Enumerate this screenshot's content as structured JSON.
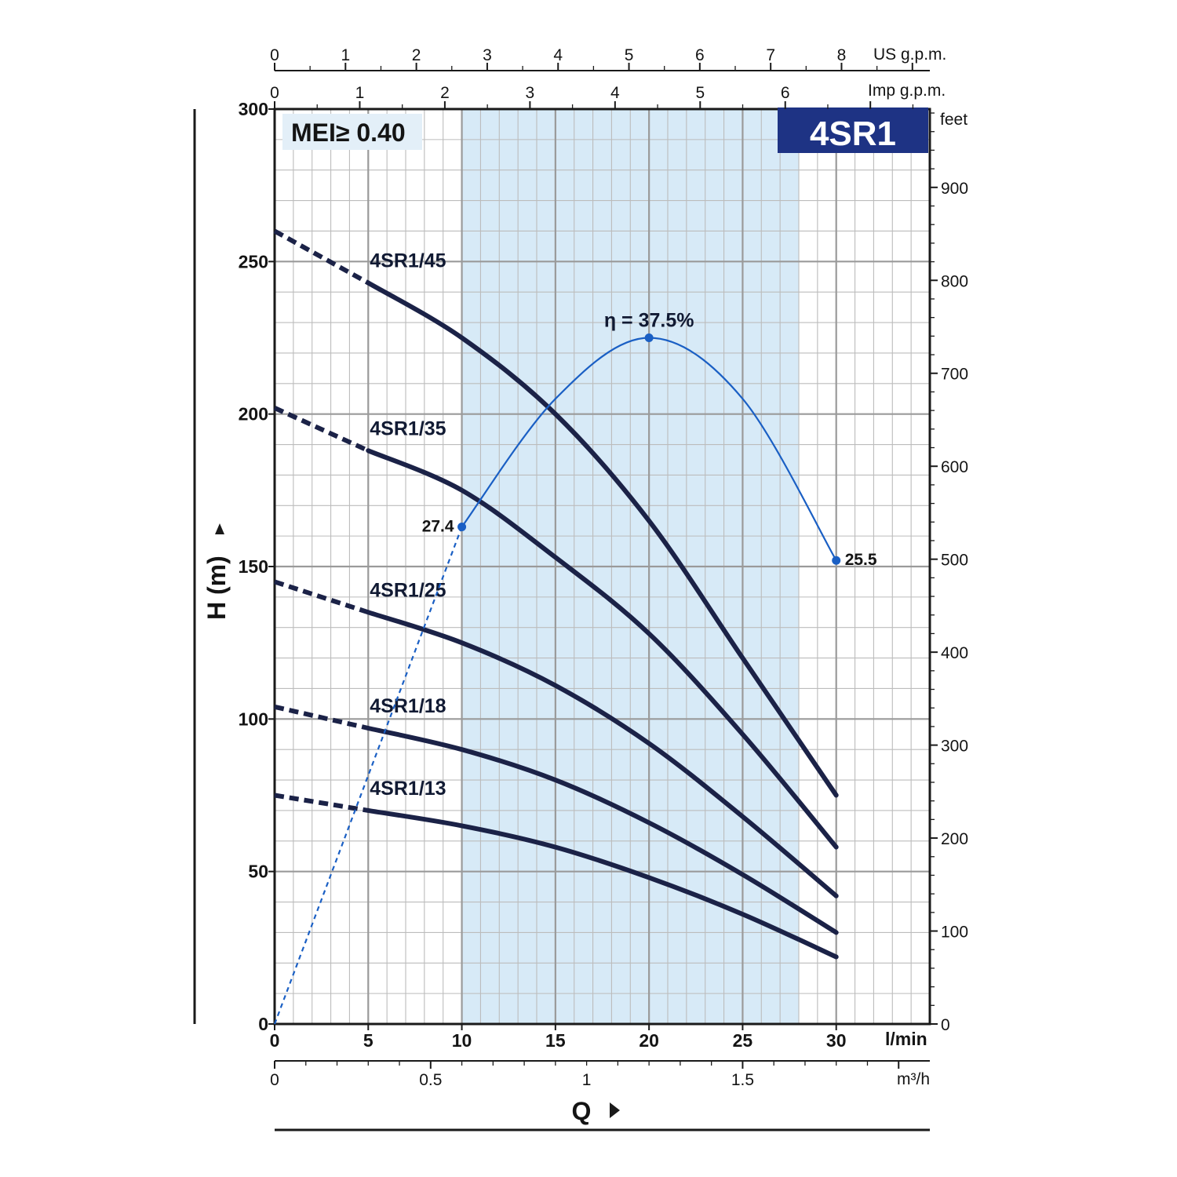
{
  "chart_data": {
    "type": "line",
    "badge": "4SR1",
    "mei_label": "MEI≥ 0.40",
    "x": {
      "label": "Q",
      "unit": "l/min",
      "range": [
        0,
        35
      ],
      "ticks": [
        0,
        5,
        10,
        15,
        20,
        25,
        30
      ],
      "tick_labels": [
        "0",
        "5",
        "10",
        "15",
        "20",
        "25",
        "30"
      ]
    },
    "y": {
      "label": "H  (m)",
      "range": [
        0,
        300
      ],
      "ticks": [
        0,
        50,
        100,
        150,
        200,
        250,
        300
      ],
      "tick_labels": [
        "0",
        "50",
        "100",
        "150",
        "200",
        "250",
        "300"
      ]
    },
    "secondary_axes": {
      "us_gpm": {
        "unit": "US g.p.m.",
        "tick_labels": [
          "0",
          "1",
          "2",
          "3",
          "4",
          "5",
          "6",
          "7",
          "8"
        ]
      },
      "imp_gpm": {
        "unit": "Imp g.p.m.",
        "tick_labels": [
          "0",
          "1",
          "2",
          "3",
          "4",
          "5",
          "6"
        ]
      },
      "m3h": {
        "unit": "m³/h",
        "tick_labels": [
          "0",
          "0.5",
          "1",
          "1.5"
        ]
      },
      "feet": {
        "unit": "feet",
        "tick_labels": [
          "0",
          "100",
          "200",
          "300",
          "400",
          "500",
          "600",
          "700",
          "800",
          "900"
        ]
      }
    },
    "operating_range": [
      10,
      28
    ],
    "series": [
      {
        "name": "4SR1/45",
        "x": [
          0,
          5,
          10,
          15,
          20,
          25,
          30
        ],
        "y": [
          260,
          243,
          225,
          200,
          165,
          120,
          75
        ]
      },
      {
        "name": "4SR1/35",
        "x": [
          0,
          5,
          10,
          15,
          20,
          25,
          30
        ],
        "y": [
          202,
          188,
          175,
          153,
          128,
          95,
          58
        ]
      },
      {
        "name": "4SR1/25",
        "x": [
          0,
          5,
          10,
          15,
          20,
          25,
          30
        ],
        "y": [
          145,
          135,
          125,
          111,
          92,
          68,
          42
        ]
      },
      {
        "name": "4SR1/18",
        "x": [
          0,
          5,
          10,
          15,
          20,
          25,
          30
        ],
        "y": [
          104,
          97,
          90,
          80,
          66,
          49,
          30
        ]
      },
      {
        "name": "4SR1/13",
        "x": [
          0,
          5,
          10,
          15,
          20,
          25,
          30
        ],
        "y": [
          75,
          70,
          65,
          58,
          48,
          36,
          22
        ]
      }
    ],
    "efficiency": {
      "x": [
        0,
        5,
        10,
        15,
        20,
        25,
        30
      ],
      "y": [
        0,
        97,
        163,
        205,
        225,
        205,
        152
      ],
      "points": [
        {
          "x": 10,
          "y": 163,
          "label": "27.4"
        },
        {
          "x": 20,
          "y": 225,
          "label": "η = 37.5%"
        },
        {
          "x": 30,
          "y": 152,
          "label": "25.5"
        }
      ]
    },
    "colors": {
      "curve": "#1b2247",
      "efficiency": "#1a5fc4",
      "band": "#d7eaf7",
      "badge": "#1e3384",
      "mei_box": "#e3eff8",
      "grid": "#bcbcbc"
    }
  }
}
